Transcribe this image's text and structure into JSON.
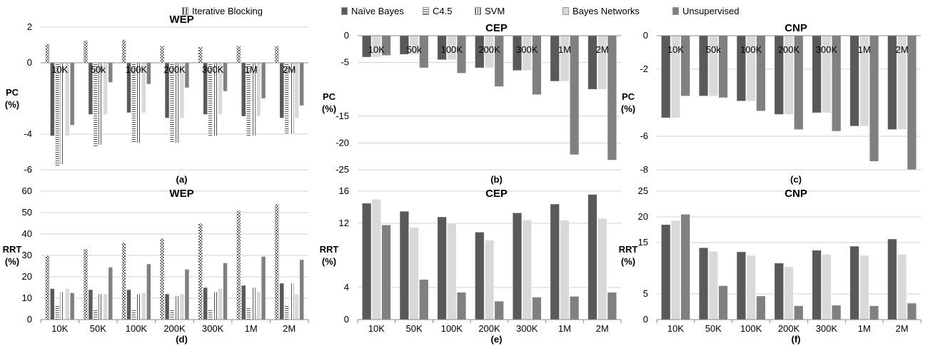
{
  "legend": [
    {
      "name": "Iterative Blocking",
      "color": "#ffffff",
      "pattern": "checker"
    },
    {
      "name": "Naïve Bayes",
      "color": "#595959",
      "pattern": "solid"
    },
    {
      "name": "C4.5",
      "color": "#ffffff",
      "pattern": "hlines"
    },
    {
      "name": "SVM",
      "color": "#ffffff",
      "pattern": "vlines"
    },
    {
      "name": "Bayes Networks",
      "color": "#d9d9d9",
      "pattern": "solid"
    },
    {
      "name": "Unsupervised",
      "color": "#808080",
      "pattern": "solid"
    }
  ],
  "chart_data": [
    {
      "type": "bar",
      "panel": "(a)",
      "title": "WEP",
      "ylabel": "PC (%)",
      "categories": [
        "10K",
        "50k",
        "100K",
        "200K",
        "300K",
        "1M",
        "2M"
      ],
      "ylim": [
        -6,
        2
      ],
      "yticks": [
        2,
        0,
        -4,
        -6
      ],
      "category_labels_position": "zero",
      "series": [
        {
          "name": "Iterative Blocking",
          "values": [
            1.05,
            1.25,
            1.3,
            0.95,
            0.9,
            0.95,
            0.95
          ]
        },
        {
          "name": "Naïve Bayes",
          "values": [
            -4.1,
            -2.9,
            -2.8,
            -3.1,
            -2.9,
            -3.0,
            -3.1
          ]
        },
        {
          "name": "C4.5",
          "values": [
            -5.8,
            -4.7,
            -4.5,
            -4.5,
            -4.1,
            -4.1,
            -4.0
          ]
        },
        {
          "name": "SVM",
          "values": [
            -5.7,
            -4.6,
            -4.5,
            -4.5,
            -4.1,
            -4.1,
            -4.0
          ]
        },
        {
          "name": "Bayes Networks",
          "values": [
            -4.1,
            -2.9,
            -2.8,
            -3.1,
            -2.9,
            -3.0,
            -3.1
          ]
        },
        {
          "name": "Unsupervised",
          "values": [
            -3.5,
            -1.1,
            -1.2,
            -1.4,
            -1.6,
            -2.0,
            -2.4
          ]
        }
      ]
    },
    {
      "type": "bar",
      "panel": "(b)",
      "title": "CEP",
      "ylabel": "PC (%)",
      "categories": [
        "10K",
        "50k",
        "100K",
        "200K",
        "300K",
        "1M",
        "2M"
      ],
      "ylim": [
        -25,
        0
      ],
      "yticks": [
        0,
        -5,
        -15,
        -20,
        -25
      ],
      "category_labels_position": "top",
      "series": [
        {
          "name": "Naïve Bayes",
          "values": [
            -4.0,
            -3.5,
            -4.5,
            -6.0,
            -6.5,
            -8.5,
            -10.0
          ]
        },
        {
          "name": "Bayes Networks",
          "values": [
            -4.0,
            -3.5,
            -4.5,
            -6.0,
            -6.5,
            -8.5,
            -10.0
          ]
        },
        {
          "name": "Unsupervised",
          "values": [
            -3.7,
            -6.0,
            -7.0,
            -9.5,
            -11.0,
            -22.2,
            -23.2
          ]
        }
      ]
    },
    {
      "type": "bar",
      "panel": "(c)",
      "title": "CNP",
      "ylabel": "PC (%)",
      "categories": [
        "10K",
        "50k",
        "100K",
        "200K",
        "300K",
        "1M",
        "2M"
      ],
      "ylim": [
        -8,
        0
      ],
      "yticks": [
        0,
        -2,
        -6,
        -8
      ],
      "category_labels_position": "top",
      "series": [
        {
          "name": "Naïve Bayes",
          "values": [
            -4.9,
            -3.6,
            -3.9,
            -4.7,
            -4.6,
            -5.4,
            -5.6
          ]
        },
        {
          "name": "Bayes Networks",
          "values": [
            -4.9,
            -3.6,
            -3.9,
            -4.7,
            -4.6,
            -5.4,
            -5.6
          ]
        },
        {
          "name": "Unsupervised",
          "values": [
            -3.6,
            -3.7,
            -4.5,
            -5.6,
            -5.7,
            -7.5,
            -8.0
          ]
        }
      ]
    },
    {
      "type": "bar",
      "panel": "(d)",
      "title": "WEP",
      "ylabel": "RRT (%)",
      "categories": [
        "10K",
        "50K",
        "100K",
        "200K",
        "300K",
        "1M",
        "2M"
      ],
      "ylim": [
        0,
        60
      ],
      "yticks": [
        0,
        10,
        20,
        30,
        40,
        50,
        60
      ],
      "category_labels_position": "bottom",
      "series": [
        {
          "name": "Iterative Blocking",
          "values": [
            30,
            33,
            36,
            38,
            45,
            51,
            54
          ]
        },
        {
          "name": "Naïve Bayes",
          "values": [
            14.5,
            14,
            14,
            12,
            15,
            16,
            17
          ]
        },
        {
          "name": "C4.5",
          "values": [
            6.5,
            5,
            5,
            4.5,
            4.5,
            6,
            6.5
          ]
        },
        {
          "name": "SVM",
          "values": [
            13,
            12,
            12,
            11,
            13,
            15,
            17
          ]
        },
        {
          "name": "Bayes Networks",
          "values": [
            14.5,
            12,
            12.5,
            12,
            14.5,
            13,
            12
          ]
        },
        {
          "name": "Unsupervised",
          "values": [
            12.5,
            24.5,
            26,
            23.5,
            26.5,
            29.5,
            28
          ]
        }
      ]
    },
    {
      "type": "bar",
      "panel": "(e)",
      "title": "CEP",
      "ylabel": "RRT (%)",
      "categories": [
        "10K",
        "50K",
        "100K",
        "200K",
        "300K",
        "1M",
        "2M"
      ],
      "ylim": [
        0,
        16
      ],
      "yticks": [
        0,
        4,
        12,
        16
      ],
      "category_labels_position": "bottom",
      "series": [
        {
          "name": "Naïve Bayes",
          "values": [
            14.5,
            13.5,
            12.8,
            10.9,
            13.3,
            14.4,
            15.6
          ]
        },
        {
          "name": "Bayes Networks",
          "values": [
            15.0,
            11.5,
            12.0,
            9.9,
            12.4,
            12.4,
            12.6
          ]
        },
        {
          "name": "Unsupervised",
          "values": [
            11.8,
            5.0,
            3.4,
            2.3,
            2.8,
            2.9,
            3.4
          ]
        }
      ]
    },
    {
      "type": "bar",
      "panel": "(f)",
      "title": "CNP",
      "ylabel": "RRT (%)",
      "categories": [
        "10K",
        "50K",
        "100K",
        "200K",
        "300K",
        "1M",
        "2M"
      ],
      "ylim": [
        0,
        25
      ],
      "yticks": [
        0,
        5,
        15,
        20,
        25
      ],
      "category_labels_position": "bottom",
      "series": [
        {
          "name": "Naïve Bayes",
          "values": [
            18.5,
            14.0,
            13.2,
            11.0,
            13.5,
            14.3,
            15.7
          ]
        },
        {
          "name": "Bayes Networks",
          "values": [
            19.3,
            13.3,
            12.5,
            10.3,
            12.7,
            12.5,
            12.7
          ]
        },
        {
          "name": "Unsupervised",
          "values": [
            20.5,
            6.6,
            4.6,
            2.7,
            2.8,
            2.7,
            3.2
          ]
        }
      ]
    }
  ]
}
